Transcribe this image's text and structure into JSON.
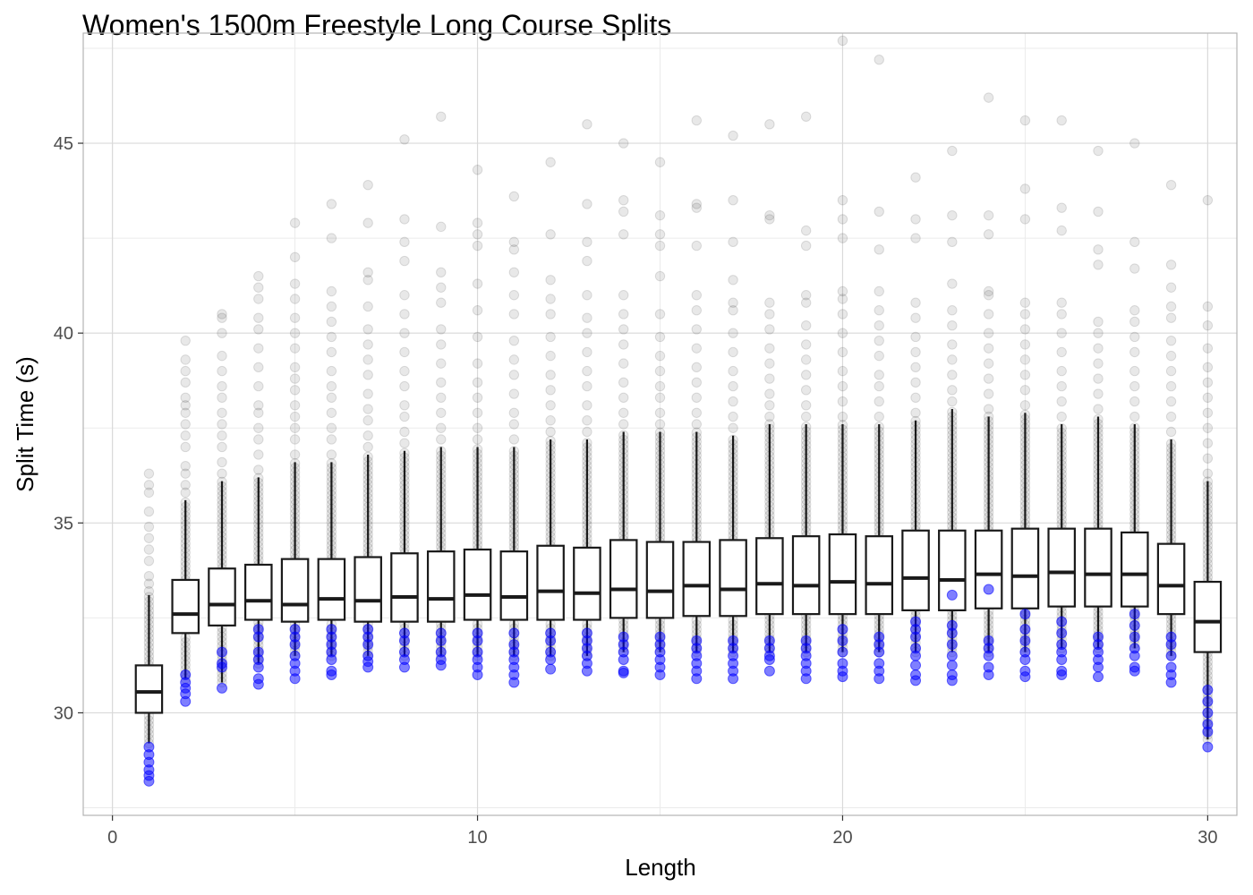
{
  "chart_data": {
    "type": "box",
    "title": "Women's 1500m Freestyle Long Course Splits",
    "xlabel": "Length",
    "ylabel": "Split Time (s)",
    "xlim": [
      -0.8,
      30.8
    ],
    "ylim": [
      27.3,
      47.9
    ],
    "x_ticks": [
      0,
      10,
      20,
      30
    ],
    "y_ticks": [
      30,
      35,
      40,
      45
    ],
    "grid": true,
    "colors": {
      "box_fill": "#ffffff",
      "box_stroke": "#1a1a1a",
      "outlier_gray": "#000000",
      "highlight_blue": "#0000ff",
      "grid_major": "#d9d9d9",
      "grid_minor": "#ebebeb",
      "panel_border": "#b3b3b3"
    },
    "boxes": [
      {
        "length": 1,
        "lower_whisker": 29.2,
        "q1": 30.0,
        "median": 30.55,
        "q3": 31.25,
        "upper_whisker": 33.1
      },
      {
        "length": 2,
        "lower_whisker": 30.9,
        "q1": 32.1,
        "median": 32.6,
        "q3": 33.5,
        "upper_whisker": 35.6
      },
      {
        "length": 3,
        "lower_whisker": 30.8,
        "q1": 32.3,
        "median": 32.85,
        "q3": 33.8,
        "upper_whisker": 36.1
      },
      {
        "length": 4,
        "lower_whisker": 31.3,
        "q1": 32.45,
        "median": 32.95,
        "q3": 33.9,
        "upper_whisker": 36.2
      },
      {
        "length": 5,
        "lower_whisker": 31.5,
        "q1": 32.4,
        "median": 32.85,
        "q3": 34.05,
        "upper_whisker": 36.6
      },
      {
        "length": 6,
        "lower_whisker": 31.5,
        "q1": 32.45,
        "median": 33.0,
        "q3": 34.05,
        "upper_whisker": 36.6
      },
      {
        "length": 7,
        "lower_whisker": 31.5,
        "q1": 32.4,
        "median": 32.95,
        "q3": 34.1,
        "upper_whisker": 36.8
      },
      {
        "length": 8,
        "lower_whisker": 31.5,
        "q1": 32.4,
        "median": 33.05,
        "q3": 34.2,
        "upper_whisker": 36.9
      },
      {
        "length": 9,
        "lower_whisker": 31.5,
        "q1": 32.4,
        "median": 33.0,
        "q3": 34.25,
        "upper_whisker": 37.0
      },
      {
        "length": 10,
        "lower_whisker": 31.5,
        "q1": 32.45,
        "median": 33.1,
        "q3": 34.3,
        "upper_whisker": 37.0
      },
      {
        "length": 11,
        "lower_whisker": 31.5,
        "q1": 32.45,
        "median": 33.05,
        "q3": 34.25,
        "upper_whisker": 37.0
      },
      {
        "length": 12,
        "lower_whisker": 31.5,
        "q1": 32.45,
        "median": 33.2,
        "q3": 34.4,
        "upper_whisker": 37.2
      },
      {
        "length": 13,
        "lower_whisker": 31.5,
        "q1": 32.45,
        "median": 33.15,
        "q3": 34.35,
        "upper_whisker": 37.2
      },
      {
        "length": 14,
        "lower_whisker": 31.6,
        "q1": 32.5,
        "median": 33.25,
        "q3": 34.55,
        "upper_whisker": 37.4
      },
      {
        "length": 15,
        "lower_whisker": 31.6,
        "q1": 32.5,
        "median": 33.2,
        "q3": 34.5,
        "upper_whisker": 37.4
      },
      {
        "length": 16,
        "lower_whisker": 31.6,
        "q1": 32.55,
        "median": 33.35,
        "q3": 34.5,
        "upper_whisker": 37.4
      },
      {
        "length": 17,
        "lower_whisker": 31.6,
        "q1": 32.55,
        "median": 33.25,
        "q3": 34.55,
        "upper_whisker": 37.3
      },
      {
        "length": 18,
        "lower_whisker": 31.6,
        "q1": 32.6,
        "median": 33.4,
        "q3": 34.6,
        "upper_whisker": 37.6
      },
      {
        "length": 19,
        "lower_whisker": 31.6,
        "q1": 32.6,
        "median": 33.35,
        "q3": 34.65,
        "upper_whisker": 37.6
      },
      {
        "length": 20,
        "lower_whisker": 31.6,
        "q1": 32.6,
        "median": 33.45,
        "q3": 34.7,
        "upper_whisker": 37.6
      },
      {
        "length": 21,
        "lower_whisker": 31.6,
        "q1": 32.6,
        "median": 33.4,
        "q3": 34.65,
        "upper_whisker": 37.6
      },
      {
        "length": 22,
        "lower_whisker": 31.6,
        "q1": 32.7,
        "median": 33.55,
        "q3": 34.8,
        "upper_whisker": 37.7
      },
      {
        "length": 23,
        "lower_whisker": 31.6,
        "q1": 32.7,
        "median": 33.5,
        "q3": 34.8,
        "upper_whisker": 38.0
      },
      {
        "length": 24,
        "lower_whisker": 31.6,
        "q1": 32.75,
        "median": 33.65,
        "q3": 34.8,
        "upper_whisker": 37.8
      },
      {
        "length": 25,
        "lower_whisker": 31.6,
        "q1": 32.75,
        "median": 33.6,
        "q3": 34.85,
        "upper_whisker": 37.9
      },
      {
        "length": 26,
        "lower_whisker": 31.7,
        "q1": 32.8,
        "median": 33.7,
        "q3": 34.85,
        "upper_whisker": 37.6
      },
      {
        "length": 27,
        "lower_whisker": 31.7,
        "q1": 32.8,
        "median": 33.65,
        "q3": 34.85,
        "upper_whisker": 37.8
      },
      {
        "length": 28,
        "lower_whisker": 31.7,
        "q1": 32.8,
        "median": 33.65,
        "q3": 34.75,
        "upper_whisker": 37.6
      },
      {
        "length": 29,
        "lower_whisker": 31.5,
        "q1": 32.6,
        "median": 33.35,
        "q3": 34.45,
        "upper_whisker": 37.2
      },
      {
        "length": 30,
        "lower_whisker": 29.3,
        "q1": 31.6,
        "median": 32.4,
        "q3": 33.45,
        "upper_whisker": 36.1
      }
    ],
    "upper_outliers": [
      [
        1,
        [
          33.2,
          33.4,
          33.6,
          34.0,
          34.3,
          34.6,
          34.9,
          35.3,
          35.8,
          36.0,
          36.3
        ]
      ],
      [
        2,
        [
          35.8,
          36.0,
          36.3,
          36.5,
          37.0,
          37.3,
          37.6,
          37.9,
          38.1,
          38.3,
          38.7,
          39.0,
          39.3,
          39.8
        ]
      ],
      [
        3,
        [
          36.3,
          36.6,
          37.0,
          37.3,
          37.6,
          37.9,
          38.3,
          38.6,
          39.0,
          39.4,
          40.0,
          40.4,
          40.5
        ]
      ],
      [
        4,
        [
          36.4,
          36.8,
          37.2,
          37.5,
          37.9,
          38.1,
          38.6,
          39.1,
          39.6,
          40.1,
          40.4,
          40.9,
          41.2,
          41.5
        ]
      ],
      [
        5,
        [
          36.8,
          37.2,
          37.5,
          37.8,
          38.1,
          38.5,
          38.8,
          39.1,
          39.6,
          40.0,
          40.4,
          40.9,
          41.3,
          42.0,
          42.9
        ]
      ],
      [
        6,
        [
          36.8,
          37.2,
          37.5,
          37.9,
          38.3,
          38.6,
          39.0,
          39.5,
          39.9,
          40.3,
          40.7,
          41.1,
          42.5,
          43.4
        ]
      ],
      [
        7,
        [
          37.0,
          37.3,
          37.7,
          38.0,
          38.4,
          38.9,
          39.3,
          39.7,
          40.1,
          40.7,
          41.4,
          41.6,
          42.9,
          43.9
        ]
      ],
      [
        8,
        [
          37.1,
          37.4,
          37.8,
          38.1,
          38.6,
          39.0,
          39.5,
          40.0,
          40.5,
          41.0,
          41.9,
          42.4,
          43.0,
          45.1
        ]
      ],
      [
        9,
        [
          37.2,
          37.5,
          37.9,
          38.3,
          38.7,
          39.2,
          39.7,
          40.1,
          40.8,
          41.2,
          41.6,
          42.8,
          45.7
        ]
      ],
      [
        10,
        [
          37.2,
          37.5,
          37.9,
          38.3,
          38.7,
          39.2,
          39.9,
          40.6,
          41.3,
          42.3,
          42.6,
          42.9,
          44.3
        ]
      ],
      [
        11,
        [
          37.2,
          37.6,
          37.9,
          38.4,
          38.9,
          39.3,
          39.8,
          40.5,
          41.0,
          41.6,
          42.2,
          42.4,
          43.6
        ]
      ],
      [
        12,
        [
          37.4,
          37.7,
          38.1,
          38.5,
          38.9,
          39.4,
          39.9,
          40.5,
          40.9,
          41.4,
          42.6,
          44.5
        ]
      ],
      [
        13,
        [
          37.4,
          37.7,
          38.1,
          38.6,
          39.0,
          39.5,
          40.0,
          40.4,
          41.0,
          41.9,
          42.4,
          43.4,
          45.5
        ]
      ],
      [
        14,
        [
          37.6,
          37.9,
          38.3,
          38.7,
          39.2,
          39.7,
          40.1,
          40.5,
          41.0,
          42.6,
          43.2,
          43.5,
          45.0
        ]
      ],
      [
        15,
        [
          37.6,
          37.9,
          38.3,
          38.6,
          39.0,
          39.4,
          39.9,
          40.5,
          41.5,
          42.3,
          42.6,
          43.1,
          44.5
        ]
      ],
      [
        16,
        [
          37.6,
          37.9,
          38.3,
          38.7,
          39.1,
          39.6,
          40.1,
          40.6,
          41.0,
          42.3,
          43.3,
          43.4,
          45.6
        ]
      ],
      [
        17,
        [
          37.5,
          37.8,
          38.2,
          38.6,
          39.0,
          39.5,
          40.0,
          40.6,
          40.8,
          41.4,
          42.4,
          43.5,
          45.2
        ]
      ],
      [
        18,
        [
          37.8,
          38.1,
          38.4,
          38.8,
          39.2,
          39.6,
          40.1,
          40.5,
          40.8,
          43.0,
          43.1,
          45.5
        ]
      ],
      [
        19,
        [
          37.8,
          38.1,
          38.5,
          38.9,
          39.3,
          39.7,
          40.2,
          40.8,
          41.0,
          42.3,
          42.7,
          45.7
        ]
      ],
      [
        20,
        [
          37.8,
          38.2,
          38.6,
          39.0,
          39.5,
          40.0,
          40.5,
          40.9,
          41.1,
          42.5,
          43.0,
          43.5,
          47.7
        ]
      ],
      [
        21,
        [
          37.8,
          38.2,
          38.6,
          38.9,
          39.4,
          39.8,
          40.2,
          40.6,
          41.1,
          42.2,
          43.2,
          47.2
        ]
      ],
      [
        22,
        [
          37.9,
          38.3,
          38.7,
          39.1,
          39.5,
          39.9,
          40.4,
          40.8,
          42.5,
          43.0,
          44.1
        ]
      ],
      [
        23,
        [
          38.2,
          38.5,
          38.9,
          39.3,
          39.7,
          40.2,
          40.6,
          41.3,
          42.4,
          43.1,
          44.8
        ]
      ],
      [
        24,
        [
          38.0,
          38.4,
          38.8,
          39.2,
          39.6,
          40.0,
          40.5,
          41.0,
          41.1,
          42.6,
          43.1,
          46.2
        ]
      ],
      [
        25,
        [
          38.1,
          38.5,
          38.9,
          39.3,
          39.7,
          40.1,
          40.5,
          40.8,
          43.0,
          43.8,
          45.6
        ]
      ],
      [
        26,
        [
          37.8,
          38.2,
          38.6,
          39.0,
          39.5,
          40.0,
          40.5,
          40.8,
          42.7,
          43.3,
          45.6
        ]
      ],
      [
        27,
        [
          38.0,
          38.4,
          38.8,
          39.2,
          39.6,
          40.0,
          40.3,
          41.8,
          42.2,
          43.2,
          44.8
        ]
      ],
      [
        28,
        [
          37.8,
          38.2,
          38.6,
          39.0,
          39.5,
          39.9,
          40.3,
          40.6,
          41.7,
          42.4,
          45.0
        ]
      ],
      [
        29,
        [
          37.4,
          37.8,
          38.2,
          38.6,
          39.0,
          39.4,
          39.8,
          40.4,
          40.7,
          41.2,
          41.8,
          43.9
        ]
      ],
      [
        30,
        [
          36.3,
          36.7,
          37.1,
          37.5,
          37.9,
          38.3,
          38.7,
          39.1,
          39.6,
          40.2,
          40.7,
          43.5
        ]
      ]
    ],
    "highlighted_points": [
      [
        1,
        [
          29.1,
          28.9,
          28.7,
          28.5,
          28.35,
          28.2
        ]
      ],
      [
        2,
        [
          31.0,
          30.8,
          30.65,
          30.5,
          30.3
        ]
      ],
      [
        3,
        [
          31.6,
          31.3,
          31.2,
          30.65
        ]
      ],
      [
        4,
        [
          32.2,
          32.0,
          31.6,
          31.4,
          31.2,
          30.9,
          30.75
        ]
      ],
      [
        5,
        [
          32.2,
          32.0,
          31.8,
          31.5,
          31.3,
          31.1,
          30.9
        ]
      ],
      [
        6,
        [
          32.2,
          32.0,
          31.8,
          31.6,
          31.4,
          31.1,
          31.0
        ]
      ],
      [
        7,
        [
          32.2,
          32.0,
          31.8,
          31.5,
          31.35,
          31.2
        ]
      ],
      [
        8,
        [
          32.1,
          31.9,
          31.6,
          31.4,
          31.2
        ]
      ],
      [
        9,
        [
          32.1,
          31.9,
          31.6,
          31.4,
          31.25
        ]
      ],
      [
        10,
        [
          32.1,
          31.9,
          31.6,
          31.4,
          31.2,
          31.0
        ]
      ],
      [
        11,
        [
          32.1,
          31.8,
          31.6,
          31.4,
          31.2,
          31.0,
          30.8
        ]
      ],
      [
        12,
        [
          32.1,
          31.9,
          31.6,
          31.4,
          31.15
        ]
      ],
      [
        13,
        [
          32.1,
          31.9,
          31.7,
          31.5,
          31.3,
          31.1
        ]
      ],
      [
        14,
        [
          32.0,
          31.8,
          31.6,
          31.4,
          31.1,
          31.05
        ]
      ],
      [
        15,
        [
          32.0,
          31.8,
          31.6,
          31.4,
          31.2,
          31.0
        ]
      ],
      [
        16,
        [
          31.9,
          31.7,
          31.5,
          31.3,
          31.1,
          30.9
        ]
      ],
      [
        17,
        [
          31.9,
          31.7,
          31.5,
          31.3,
          31.1,
          30.9
        ]
      ],
      [
        18,
        [
          31.9,
          31.7,
          31.5,
          31.4,
          31.1
        ]
      ],
      [
        19,
        [
          31.9,
          31.7,
          31.5,
          31.3,
          31.1,
          30.9
        ]
      ],
      [
        20,
        [
          32.2,
          31.9,
          31.6,
          31.3,
          31.1,
          30.95
        ]
      ],
      [
        21,
        [
          32.0,
          31.8,
          31.6,
          31.3,
          31.1,
          30.9
        ]
      ],
      [
        22,
        [
          32.4,
          32.2,
          32.0,
          31.7,
          31.5,
          31.25,
          31.0,
          30.85
        ]
      ],
      [
        23,
        [
          33.1,
          32.3,
          32.1,
          31.8,
          31.5,
          31.25,
          31.0,
          30.85
        ]
      ],
      [
        24,
        [
          33.25,
          31.9,
          31.7,
          31.5,
          31.2,
          31.0
        ]
      ],
      [
        25,
        [
          32.6,
          32.2,
          31.9,
          31.6,
          31.4,
          31.1,
          30.95
        ]
      ],
      [
        26,
        [
          32.4,
          32.1,
          31.8,
          31.6,
          31.4,
          31.1,
          31.0
        ]
      ],
      [
        27,
        [
          32.0,
          31.8,
          31.6,
          31.4,
          31.2,
          30.95
        ]
      ],
      [
        28,
        [
          32.6,
          32.3,
          32.0,
          31.7,
          31.5,
          31.2,
          31.1
        ]
      ],
      [
        29,
        [
          32.0,
          31.8,
          31.5,
          31.2,
          31.0,
          30.8
        ]
      ],
      [
        30,
        [
          30.6,
          30.3,
          30.0,
          29.7,
          29.5,
          29.1
        ]
      ]
    ]
  }
}
